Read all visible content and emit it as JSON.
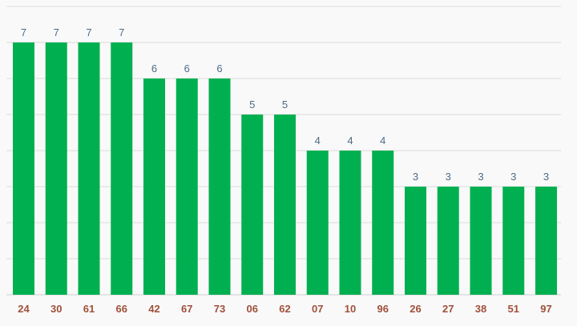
{
  "chart_data": {
    "type": "bar",
    "categories": [
      "24",
      "30",
      "61",
      "66",
      "42",
      "67",
      "73",
      "06",
      "62",
      "07",
      "10",
      "96",
      "26",
      "27",
      "38",
      "51",
      "97"
    ],
    "values": [
      7,
      7,
      7,
      7,
      6,
      6,
      6,
      5,
      5,
      4,
      4,
      4,
      3,
      3,
      3,
      3,
      3
    ],
    "ylim": [
      0,
      8
    ],
    "grid": true,
    "colors": {
      "bar": "#00b050",
      "value_label": "#4f6b86",
      "category_label": "#a0503a",
      "grid": "#dcdcdc",
      "background": "#f9f9f9"
    }
  }
}
